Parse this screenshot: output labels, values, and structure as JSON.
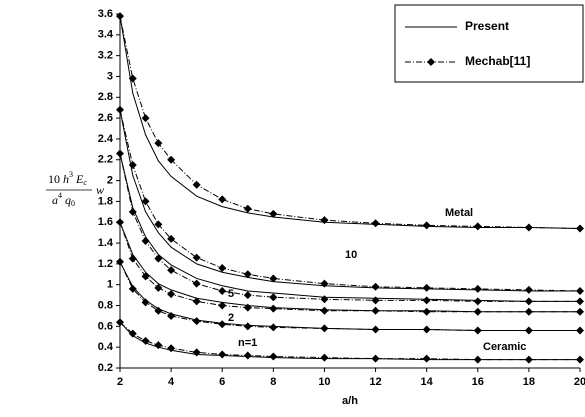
{
  "chart_data": {
    "type": "line",
    "x_label": "a/h",
    "y_label": {
      "numerator": [
        "10 ",
        "h",
        "3",
        " E",
        "c"
      ],
      "denominator": [
        "a",
        "4",
        " q",
        "0"
      ],
      "suffix": "w"
    },
    "legend": [
      "Present",
      "Mechab[11]"
    ],
    "x": [
      2,
      2.5,
      3,
      3.5,
      4,
      5,
      6,
      7,
      8,
      10,
      12,
      14,
      16,
      18,
      20
    ],
    "series": [
      {
        "name": "Metal",
        "present": [
          3.58,
          2.84,
          2.44,
          2.19,
          2.04,
          1.85,
          1.75,
          1.69,
          1.65,
          1.6,
          1.58,
          1.56,
          1.55,
          1.55,
          1.54
        ],
        "mechab": [
          3.58,
          2.98,
          2.6,
          2.36,
          2.2,
          1.96,
          1.82,
          1.73,
          1.68,
          1.62,
          1.59,
          1.57,
          1.56,
          1.55,
          1.54
        ]
      },
      {
        "name": "10",
        "present": [
          2.68,
          2.05,
          1.7,
          1.5,
          1.36,
          1.2,
          1.12,
          1.07,
          1.03,
          0.99,
          0.97,
          0.96,
          0.95,
          0.94,
          0.94
        ],
        "mechab": [
          2.68,
          2.15,
          1.8,
          1.58,
          1.44,
          1.26,
          1.16,
          1.1,
          1.06,
          1.01,
          0.98,
          0.97,
          0.96,
          0.95,
          0.94
        ]
      },
      {
        "name": "5",
        "present": [
          2.26,
          1.74,
          1.46,
          1.29,
          1.19,
          1.06,
          0.99,
          0.94,
          0.92,
          0.88,
          0.87,
          0.86,
          0.85,
          0.84,
          0.84
        ],
        "mechab": [
          2.26,
          1.7,
          1.42,
          1.25,
          1.14,
          1.01,
          0.94,
          0.9,
          0.88,
          0.86,
          0.85,
          0.85,
          0.84,
          0.84,
          0.84
        ]
      },
      {
        "name": "2",
        "present": [
          1.6,
          1.29,
          1.12,
          1.01,
          0.95,
          0.87,
          0.83,
          0.8,
          0.78,
          0.76,
          0.75,
          0.75,
          0.74,
          0.74,
          0.74
        ],
        "mechab": [
          1.6,
          1.25,
          1.08,
          0.97,
          0.91,
          0.84,
          0.8,
          0.78,
          0.77,
          0.75,
          0.75,
          0.74,
          0.74,
          0.74,
          0.74
        ]
      },
      {
        "name": "n=1",
        "present": [
          1.22,
          0.98,
          0.85,
          0.77,
          0.72,
          0.66,
          0.63,
          0.61,
          0.6,
          0.58,
          0.57,
          0.57,
          0.56,
          0.56,
          0.56
        ],
        "mechab": [
          1.22,
          0.96,
          0.83,
          0.75,
          0.7,
          0.65,
          0.62,
          0.6,
          0.59,
          0.58,
          0.57,
          0.57,
          0.56,
          0.56,
          0.56
        ]
      },
      {
        "name": "Ceramic",
        "present": [
          0.64,
          0.51,
          0.44,
          0.4,
          0.37,
          0.33,
          0.32,
          0.31,
          0.3,
          0.29,
          0.29,
          0.28,
          0.28,
          0.28,
          0.28
        ],
        "mechab": [
          0.64,
          0.53,
          0.46,
          0.42,
          0.39,
          0.35,
          0.33,
          0.32,
          0.31,
          0.3,
          0.29,
          0.29,
          0.28,
          0.28,
          0.28
        ]
      }
    ],
    "color": "#000000",
    "xlim": [
      2,
      20
    ],
    "xticks": [
      2,
      4,
      6,
      8,
      10,
      12,
      14,
      16,
      18,
      20
    ],
    "ylim": [
      0.2,
      3.6
    ],
    "yticks": [
      0.2,
      0.4,
      0.6,
      0.8,
      1,
      1.2,
      1.4,
      1.6,
      1.8,
      2,
      2.2,
      2.4,
      2.6,
      2.8,
      3,
      3.2,
      3.4,
      3.6
    ],
    "legend_position": "upper right"
  }
}
